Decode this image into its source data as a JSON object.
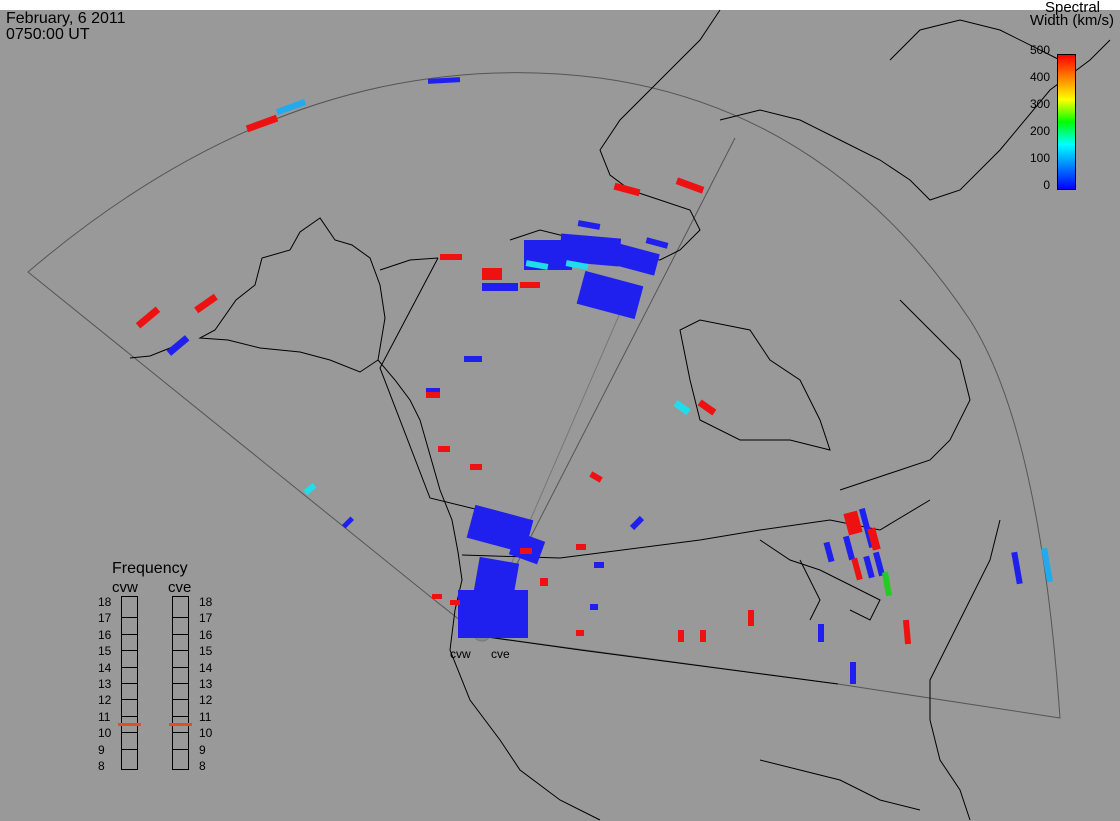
{
  "header": {
    "date": "February, 6 2011",
    "time": "0750:00 UT"
  },
  "colorbar": {
    "title_line1": "Spectral",
    "title_line2": "Width (km/s)",
    "ticks": [
      "500",
      "400",
      "300",
      "200",
      "100",
      "0"
    ],
    "colors": [
      "#ff0000",
      "#ff8000",
      "#ffff00",
      "#00ff00",
      "#00ffff",
      "#0080ff",
      "#0000ff"
    ]
  },
  "frequency": {
    "title": "Frequency",
    "left_label": "cvw",
    "right_label": "cve",
    "ticks": [
      "18",
      "17",
      "16",
      "15",
      "14",
      "13",
      "12",
      "11",
      "10",
      "9",
      "8"
    ],
    "cvw_value": 10.6,
    "cve_value": 10.6,
    "marker_color": "#e05020"
  },
  "radars": {
    "west": "cvw",
    "east": "cve"
  }
}
